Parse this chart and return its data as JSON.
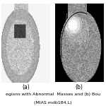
{
  "figsize": [
    1.5,
    1.5
  ],
  "dpi": 100,
  "background_color": "#ffffff",
  "panel_a": {
    "label": "(a)",
    "border_color": "#cc0000"
  },
  "panel_b": {
    "label": "(b)",
    "border_color": "#cc0000"
  },
  "caption_line1": "egions with Abnormal  Masses and (b) Bou",
  "caption_line2": "(MIAS mdb184.L)",
  "caption_fontsize": 4.5,
  "label_fontsize": 5.5
}
